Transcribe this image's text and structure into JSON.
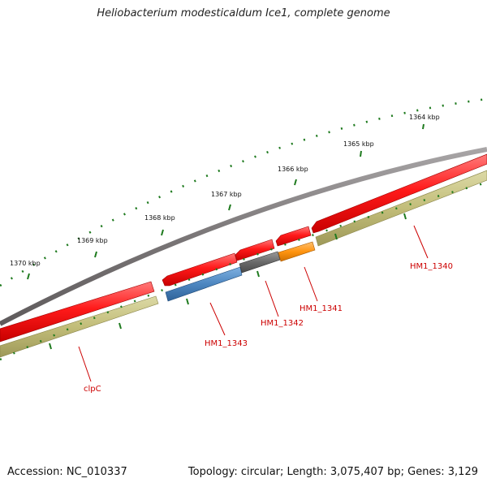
{
  "title": "Heliobacterium modesticaldum Ice1, complete genome",
  "footer": {
    "accession": "Accession: NC_010337",
    "summary": "Topology: circular; Length: 3,075,407 bp; Genes: 3,129"
  },
  "colors": {
    "backbone": "#7a7677",
    "gene_red": "#ff1a1a",
    "gene_blue": "#4d86c0",
    "gene_gray": "#6a6a6a",
    "gene_orange": "#ff9410",
    "gene_olive": "#c2bd79",
    "tick_green": "#1e7a1e",
    "label_red": "#cc0000",
    "text": "#111111"
  },
  "scale_labels": [
    "1364 kbp",
    "1365 kbp",
    "1366 kbp",
    "1367 kbp",
    "1368 kbp",
    "1369 kbp",
    "1370 kbp"
  ],
  "gene_labels": [
    "clpC",
    "HM1_1343",
    "HM1_1342",
    "HM1_1341",
    "HM1_1340"
  ]
}
